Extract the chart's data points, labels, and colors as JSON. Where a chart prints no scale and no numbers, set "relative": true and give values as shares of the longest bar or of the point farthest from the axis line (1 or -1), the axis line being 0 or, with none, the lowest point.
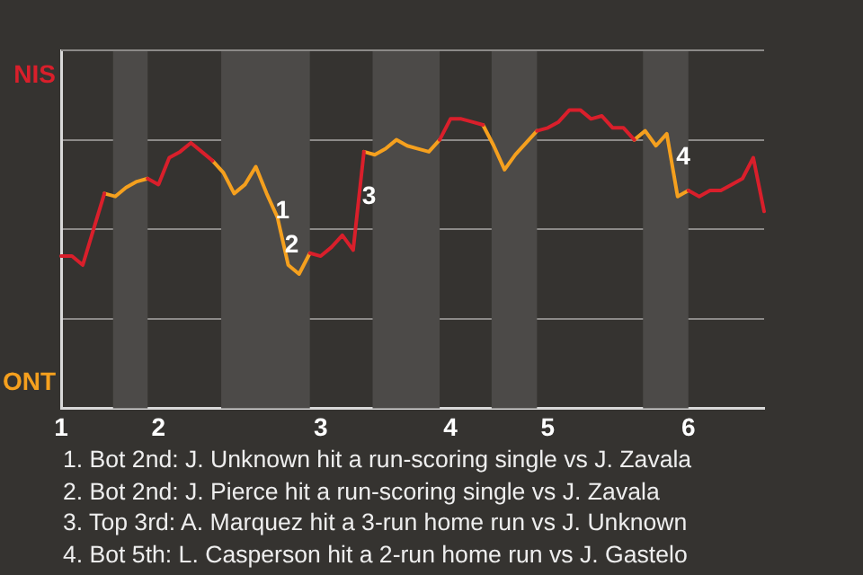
{
  "chart_data": {
    "type": "line",
    "relative": true,
    "categories": [
      "1",
      null,
      null,
      null,
      null,
      null,
      null,
      null,
      null,
      "2",
      null,
      null,
      null,
      null,
      null,
      null,
      null,
      null,
      null,
      null,
      null,
      null,
      null,
      null,
      "3",
      null,
      null,
      null,
      null,
      null,
      null,
      null,
      null,
      null,
      null,
      null,
      "4",
      null,
      null,
      null,
      null,
      null,
      null,
      null,
      null,
      "5",
      null,
      null,
      null,
      null,
      null,
      null,
      null,
      null,
      null,
      null,
      null,
      null,
      "6",
      null,
      null,
      null,
      null,
      null,
      null,
      null
    ],
    "grid": "y",
    "legend": false,
    "marker": "none",
    "line_style": "solid",
    "series": [
      {
        "color": "#d91f2b",
        "values": [
          0.51,
          0.51,
          0.48,
          0.6,
          0.72,
          null,
          null,
          null,
          0.77,
          0.75,
          0.84,
          0.86,
          0.89,
          0.86,
          0.83,
          null,
          null,
          null,
          null,
          null,
          null,
          null,
          null,
          0.52,
          0.51,
          0.54,
          0.58,
          0.53,
          0.86,
          null,
          null,
          null,
          null,
          null,
          null,
          0.9,
          0.97,
          0.97,
          0.96,
          0.95,
          null,
          null,
          null,
          null,
          0.93,
          0.94,
          0.96,
          1,
          1,
          0.97,
          0.98,
          0.94,
          0.94,
          0.9,
          null,
          null,
          null,
          null,
          0.73,
          0.71,
          0.73,
          0.73,
          0.75,
          0.77,
          0.84,
          0.66
        ]
      },
      {
        "color": "#f5a01e",
        "values": [
          null,
          null,
          null,
          null,
          0.72,
          0.71,
          0.74,
          0.76,
          0.77,
          null,
          null,
          null,
          null,
          null,
          0.83,
          0.79,
          0.72,
          0.75,
          0.81,
          0.72,
          0.64,
          0.48,
          0.45,
          0.52,
          null,
          null,
          null,
          null,
          0.86,
          0.85,
          0.87,
          0.9,
          0.88,
          0.87,
          0.86,
          0.9,
          null,
          null,
          null,
          0.95,
          0.88,
          0.8,
          0.85,
          0.89,
          0.93,
          null,
          null,
          null,
          null,
          null,
          null,
          null,
          null,
          0.9,
          0.93,
          0.88,
          0.92,
          0.71,
          0.73,
          null,
          null,
          null,
          null,
          null,
          null,
          null
        ]
      }
    ],
    "annotations": [
      "NIS",
      "ONT",
      "1",
      "2",
      "3",
      "4",
      "1. Bot 2nd: J. Unknown hit a run-scoring single vs J. Zavala",
      "2. Bot 2nd: J. Pierce hit a run-scoring single vs J. Zavala",
      "3. Top 3rd: A. Marquez hit a 3-run home run vs J. Unknown",
      "4. Bot 5th: L. Casperson hit a 2-run home run vs J. Gastelo"
    ]
  }
}
